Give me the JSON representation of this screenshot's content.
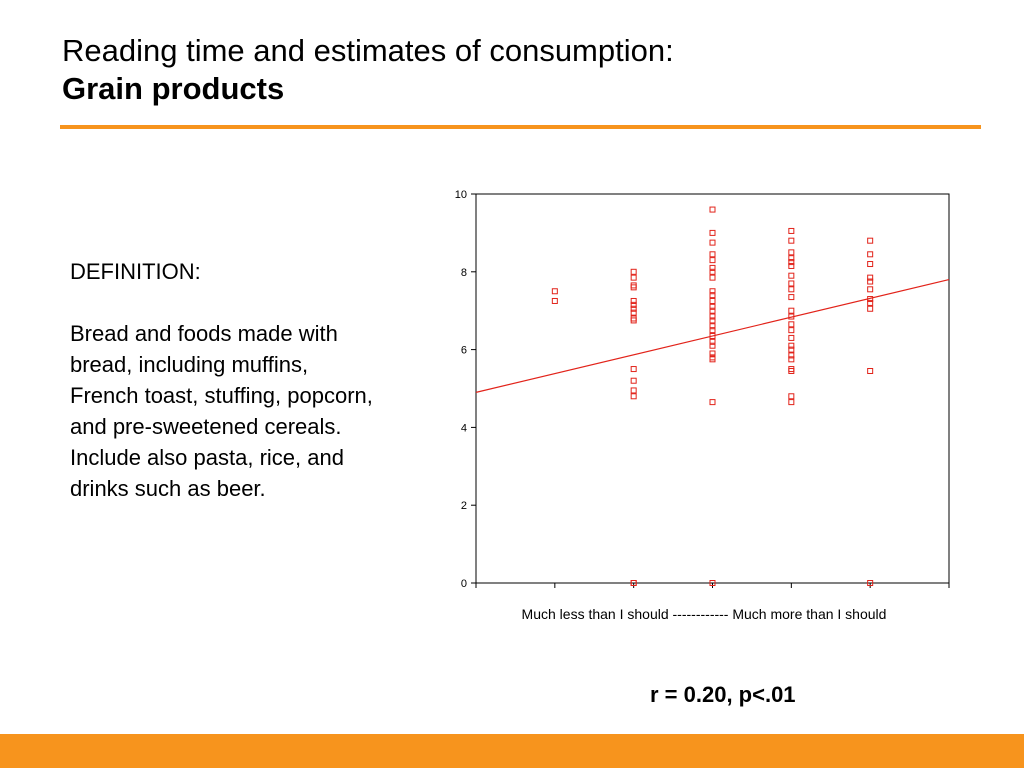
{
  "slide": {
    "title_line1": "Reading time and estimates of consumption:",
    "title_line2": "Grain products",
    "definition_heading": "DEFINITION:",
    "definition_body": "Bread and foods made with bread, including muffins, French toast, stuffing, popcorn, and pre-sweetened cereals. Include also pasta, rice, and drinks such as beer.",
    "caption": "r = 0.20, p<.01",
    "accent_color": "#F7941D"
  },
  "chart_data": {
    "type": "scatter",
    "title": "",
    "xlabel": "Much less than I should ------------ Much more than I should",
    "ylabel": "",
    "xlim": [
      0.0,
      6.0
    ],
    "ylim": [
      0,
      10
    ],
    "yticks": [
      "0",
      "2",
      "4",
      "6",
      "8",
      "10"
    ],
    "xticks_positions": [
      0,
      1,
      2,
      3,
      4,
      5,
      6
    ],
    "grid": false,
    "marker_color": "#E2231A",
    "line_color": "#E2231A",
    "regression_line": {
      "x": [
        0.0,
        6.0
      ],
      "y": [
        4.9,
        7.8
      ]
    },
    "points": [
      {
        "x": 1,
        "y": 7.5
      },
      {
        "x": 1,
        "y": 7.25
      },
      {
        "x": 2,
        "y": 8.0
      },
      {
        "x": 2,
        "y": 7.85
      },
      {
        "x": 2,
        "y": 7.65
      },
      {
        "x": 2,
        "y": 7.6
      },
      {
        "x": 2,
        "y": 7.25
      },
      {
        "x": 2,
        "y": 7.15
      },
      {
        "x": 2,
        "y": 7.05
      },
      {
        "x": 2,
        "y": 6.95
      },
      {
        "x": 2,
        "y": 6.8
      },
      {
        "x": 2,
        "y": 6.75
      },
      {
        "x": 2,
        "y": 5.5
      },
      {
        "x": 2,
        "y": 5.2
      },
      {
        "x": 2,
        "y": 4.95
      },
      {
        "x": 2,
        "y": 4.8
      },
      {
        "x": 2,
        "y": 0.0
      },
      {
        "x": 2,
        "y": 0.0
      },
      {
        "x": 3,
        "y": 9.6
      },
      {
        "x": 3,
        "y": 9.0
      },
      {
        "x": 3,
        "y": 8.75
      },
      {
        "x": 3,
        "y": 8.45
      },
      {
        "x": 3,
        "y": 8.3
      },
      {
        "x": 3,
        "y": 8.1
      },
      {
        "x": 3,
        "y": 8.0
      },
      {
        "x": 3,
        "y": 7.85
      },
      {
        "x": 3,
        "y": 7.5
      },
      {
        "x": 3,
        "y": 7.4
      },
      {
        "x": 3,
        "y": 7.25
      },
      {
        "x": 3,
        "y": 7.1
      },
      {
        "x": 3,
        "y": 7.0
      },
      {
        "x": 3,
        "y": 6.85
      },
      {
        "x": 3,
        "y": 6.75
      },
      {
        "x": 3,
        "y": 6.6
      },
      {
        "x": 3,
        "y": 6.5
      },
      {
        "x": 3,
        "y": 6.35
      },
      {
        "x": 3,
        "y": 6.2
      },
      {
        "x": 3,
        "y": 6.1
      },
      {
        "x": 3,
        "y": 5.9
      },
      {
        "x": 3,
        "y": 5.8
      },
      {
        "x": 3,
        "y": 5.75
      },
      {
        "x": 3,
        "y": 4.65
      },
      {
        "x": 3,
        "y": 0.0
      },
      {
        "x": 3,
        "y": 0.0
      },
      {
        "x": 4,
        "y": 9.05
      },
      {
        "x": 4,
        "y": 8.8
      },
      {
        "x": 4,
        "y": 8.5
      },
      {
        "x": 4,
        "y": 8.35
      },
      {
        "x": 4,
        "y": 8.25
      },
      {
        "x": 4,
        "y": 8.15
      },
      {
        "x": 4,
        "y": 7.9
      },
      {
        "x": 4,
        "y": 7.7
      },
      {
        "x": 4,
        "y": 7.55
      },
      {
        "x": 4,
        "y": 7.35
      },
      {
        "x": 4,
        "y": 7.0
      },
      {
        "x": 4,
        "y": 6.85
      },
      {
        "x": 4,
        "y": 6.65
      },
      {
        "x": 4,
        "y": 6.5
      },
      {
        "x": 4,
        "y": 6.3
      },
      {
        "x": 4,
        "y": 6.1
      },
      {
        "x": 4,
        "y": 6.0
      },
      {
        "x": 4,
        "y": 5.85
      },
      {
        "x": 4,
        "y": 5.75
      },
      {
        "x": 4,
        "y": 5.5
      },
      {
        "x": 4,
        "y": 5.45
      },
      {
        "x": 4,
        "y": 4.8
      },
      {
        "x": 4,
        "y": 4.65
      },
      {
        "x": 5,
        "y": 8.8
      },
      {
        "x": 5,
        "y": 8.45
      },
      {
        "x": 5,
        "y": 8.2
      },
      {
        "x": 5,
        "y": 7.85
      },
      {
        "x": 5,
        "y": 7.75
      },
      {
        "x": 5,
        "y": 7.55
      },
      {
        "x": 5,
        "y": 7.3
      },
      {
        "x": 5,
        "y": 7.2
      },
      {
        "x": 5,
        "y": 7.05
      },
      {
        "x": 5,
        "y": 5.45
      },
      {
        "x": 5,
        "y": 0.0
      }
    ]
  }
}
